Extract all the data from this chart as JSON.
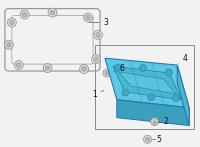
{
  "bg_color": "#f2f2f2",
  "pan_fill": "#5bc8e8",
  "pan_fill2": "#4ab5d5",
  "pan_fill3": "#3aa0be",
  "pan_edge": "#2a7aa8",
  "gasket_color": "#999999",
  "bolt_color": "#888888",
  "bolt_fill": "#cccccc",
  "label_color": "#111111",
  "line_color": "#555555",
  "box_edge": "#888888",
  "label_fontsize": 5.5
}
